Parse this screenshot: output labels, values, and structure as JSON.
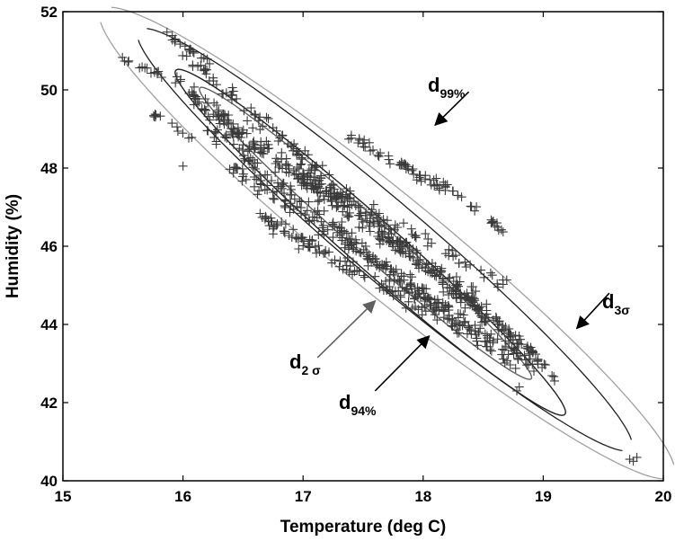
{
  "chart_data": {
    "type": "scatter",
    "title": "",
    "xlabel": "Temperature (deg C)",
    "ylabel": "Humidity (%)",
    "xlim": [
      15,
      20
    ],
    "ylim": [
      40,
      52
    ],
    "xticks": [
      "15",
      "16",
      "17",
      "18",
      "19",
      "20"
    ],
    "yticks": [
      "40",
      "42",
      "44",
      "46",
      "48",
      "50",
      "52"
    ],
    "grid": false,
    "legend": "none",
    "marker": "+",
    "bands": [
      {
        "from": [
          16.05,
          50.8
        ],
        "to": [
          18.9,
          43.2
        ],
        "n": 170,
        "spread": 0.18
      },
      {
        "from": [
          15.95,
          50.2
        ],
        "to": [
          18.8,
          43.6
        ],
        "n": 170,
        "spread": 0.2
      },
      {
        "from": [
          16.2,
          49.0
        ],
        "to": [
          18.75,
          43.0
        ],
        "n": 160,
        "spread": 0.2
      },
      {
        "from": [
          16.4,
          48.0
        ],
        "to": [
          18.95,
          42.9
        ],
        "n": 150,
        "spread": 0.2
      },
      {
        "from": [
          16.1,
          49.6
        ],
        "to": [
          18.5,
          44.6
        ],
        "n": 130,
        "spread": 0.18
      },
      {
        "from": [
          16.6,
          46.8
        ],
        "to": [
          18.3,
          43.9
        ],
        "n": 110,
        "spread": 0.2
      },
      {
        "from": [
          17.4,
          48.8
        ],
        "to": [
          18.2,
          47.4
        ],
        "n": 50,
        "spread": 0.12
      },
      {
        "from": [
          17.0,
          47.8
        ],
        "to": [
          18.7,
          45.0
        ],
        "n": 70,
        "spread": 0.18
      }
    ],
    "clusters": [
      {
        "name": "upper-left",
        "from": [
          15.5,
          50.8
        ],
        "to": [
          15.85,
          50.35
        ],
        "n": 14
      },
      {
        "name": "far-upper-left",
        "from": [
          15.85,
          51.45
        ],
        "to": [
          16.25,
          50.6
        ],
        "n": 18
      },
      {
        "name": "left-mid",
        "from": [
          15.75,
          49.4
        ],
        "to": [
          16.1,
          48.7
        ],
        "n": 12
      },
      {
        "name": "upper-right",
        "from": [
          18.05,
          47.9
        ],
        "to": [
          18.7,
          46.3
        ],
        "n": 26
      },
      {
        "name": "lower-right",
        "from": [
          18.75,
          43.8
        ],
        "to": [
          19.1,
          42.6
        ],
        "n": 18
      }
    ],
    "outliers": [
      {
        "x": 19.72,
        "y": 40.55
      },
      {
        "x": 19.78,
        "y": 40.6
      },
      {
        "x": 19.75,
        "y": 40.5
      },
      {
        "x": 18.8,
        "y": 42.4
      },
      {
        "x": 18.78,
        "y": 42.3
      },
      {
        "x": 16.0,
        "y": 48.05
      }
    ],
    "contours": [
      {
        "name": "d2σ",
        "color": "#606060",
        "center": [
          17.52,
          46.33
        ],
        "semi_major_xy": [
          1.38,
          -3.72
        ],
        "minor_ratio": 0.08
      },
      {
        "name": "d94%",
        "color": "#202020",
        "center": [
          17.56,
          46.1
        ],
        "semi_major_xy": [
          1.62,
          -4.4
        ],
        "minor_ratio": 0.095
      },
      {
        "name": "d3σ",
        "color": "#202020",
        "center": [
          17.68,
          46.17
        ],
        "semi_major_xy": [
          2.05,
          -5.35
        ],
        "minor_ratio": 0.12,
        "open": true
      },
      {
        "name": "d99%",
        "color": "#a0a0a0",
        "center": [
          17.7,
          46.08
        ],
        "semi_major_xy": [
          2.38,
          -5.95
        ],
        "minor_ratio": 0.135,
        "open": true
      }
    ],
    "annotations": [
      {
        "id": "d99",
        "main": "d",
        "sub": "99%",
        "arrow_from": [
          18.38,
          49.95
        ],
        "arrow_to": [
          18.1,
          49.1
        ]
      },
      {
        "id": "d3s",
        "main": "d",
        "sub": "3σ",
        "arrow_from": [
          19.55,
          44.8
        ],
        "arrow_to": [
          19.28,
          43.9
        ]
      },
      {
        "id": "d2s",
        "main": "d",
        "sub": "2 σ",
        "arrow_from": [
          17.12,
          43.15
        ],
        "arrow_to": [
          17.6,
          44.6
        ]
      },
      {
        "id": "d94",
        "main": "d",
        "sub": "94%",
        "arrow_from": [
          17.6,
          42.3
        ],
        "arrow_to": [
          18.05,
          43.7
        ]
      }
    ],
    "annotation_colors": {
      "d2s": "#606060"
    }
  }
}
